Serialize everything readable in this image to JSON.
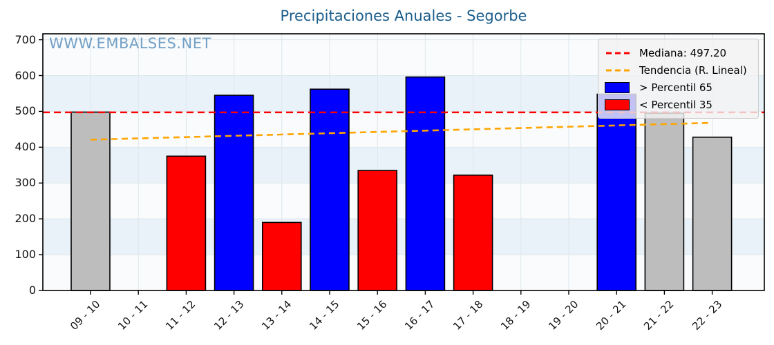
{
  "title": "Precipitaciones Anuales - Segorbe",
  "watermark": "WWW.EMBALSES.NET",
  "chart_data": {
    "type": "bar",
    "title": "Precipitaciones Anuales - Segorbe",
    "xlabel": "",
    "ylabel": "",
    "ylim": [
      0,
      700
    ],
    "ytick_step": 100,
    "ytick_labels": [
      "0",
      "100",
      "200",
      "300",
      "400",
      "500",
      "600",
      "700"
    ],
    "grid": true,
    "categories": [
      "09 - 10",
      "10 - 11",
      "11 - 12",
      "12 - 13",
      "13 - 14",
      "14 - 15",
      "15 - 16",
      "16 - 17",
      "17 - 18",
      "18 - 19",
      "19 - 20",
      "20 - 21",
      "21 - 22",
      "22 - 23"
    ],
    "values": [
      498,
      0,
      375,
      545,
      190,
      562,
      335,
      596,
      322,
      0,
      0,
      548,
      495,
      428
    ],
    "bar_classes": [
      "mid",
      "none",
      "low",
      "high",
      "low",
      "high",
      "low",
      "high",
      "low",
      "none",
      "none",
      "high",
      "mid",
      "mid"
    ],
    "median": 497.2,
    "trend_line": {
      "start_value": 421,
      "end_value": 468
    },
    "legend": {
      "position": "upper right",
      "entries": [
        {
          "label": "Mediana: 497.20",
          "type": "dashed-line",
          "color": "#ff0000"
        },
        {
          "label": "Tendencia (R. Lineal)",
          "type": "dashed-line",
          "color": "#ffa500"
        },
        {
          "label": "> Percentil 65",
          "type": "patch",
          "color": "#0000ff"
        },
        {
          "label": "< Percentil 35",
          "type": "patch",
          "color": "#ff0000"
        }
      ]
    },
    "colors": {
      "bar_high": "#0000ff",
      "bar_low": "#ff0000",
      "bar_mid": "#bdbdbd",
      "bar_edge": "#000000",
      "median_line": "#ff0000",
      "trend_line": "#ffa500",
      "plot_bg": "#fafbfc",
      "stripe": "#e9f2f8",
      "gridline": "#dce7ec",
      "title": "#1b5e8b",
      "watermark": "#4682b4"
    }
  }
}
